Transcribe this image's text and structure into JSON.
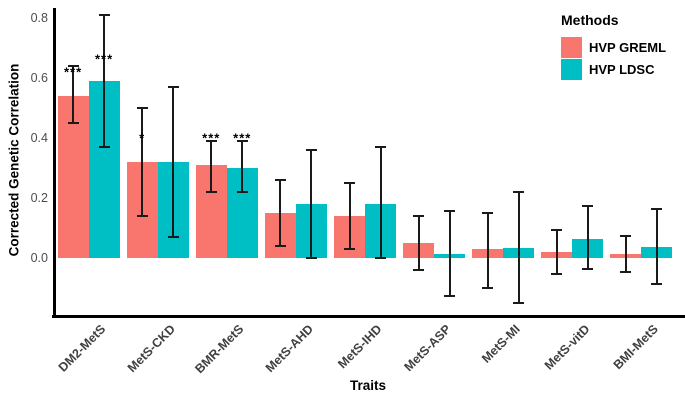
{
  "chart_data": {
    "type": "bar",
    "title": "",
    "xlabel": "Traits",
    "ylabel": "Corrected Genetic Correlation",
    "legend_title": "Methods",
    "legend_position": "top-right",
    "grid": false,
    "ylim": [
      -0.19,
      0.835
    ],
    "yticks": [
      {
        "v": 0.0,
        "label": "0.0"
      },
      {
        "v": 0.2,
        "label": "0.2"
      },
      {
        "v": 0.4,
        "label": "0.4"
      },
      {
        "v": 0.6,
        "label": "0.6"
      },
      {
        "v": 0.8,
        "label": "0.8"
      }
    ],
    "categories": [
      "DM2-MetS",
      "MetS-CKD",
      "BMR-MetS",
      "MetS-AHD",
      "MetS-IHD",
      "MetS-ASP",
      "MetS-MI",
      "MetS-vitD",
      "BMI-MetS"
    ],
    "series": [
      {
        "name": "HVP GREML",
        "color": "#F8766D",
        "values": [
          0.54,
          0.32,
          0.31,
          0.15,
          0.14,
          0.05,
          0.03,
          0.02,
          0.012
        ],
        "err_low": [
          0.45,
          0.14,
          0.22,
          0.04,
          0.03,
          -0.04,
          -0.1,
          -0.053,
          -0.046
        ],
        "err_high": [
          0.64,
          0.5,
          0.39,
          0.26,
          0.25,
          0.14,
          0.15,
          0.093,
          0.073
        ],
        "sig": [
          "***",
          "*",
          "***",
          "",
          "",
          "",
          "",
          "",
          ""
        ],
        "sig_y": [
          0.62,
          0.4,
          0.4,
          null,
          null,
          null,
          null,
          null,
          null
        ]
      },
      {
        "name": "HVP LDSC",
        "color": "#00BFC4",
        "values": [
          0.59,
          0.32,
          0.3,
          0.18,
          0.18,
          0.012,
          0.035,
          0.065,
          0.038
        ],
        "err_low": [
          0.37,
          0.07,
          0.22,
          0.0,
          0.0,
          -0.125,
          -0.15,
          -0.037,
          -0.085
        ],
        "err_high": [
          0.81,
          0.57,
          0.39,
          0.36,
          0.37,
          0.157,
          0.22,
          0.174,
          0.163
        ],
        "sig": [
          "***",
          "",
          "***",
          "",
          "",
          "",
          "",
          "",
          ""
        ],
        "sig_y": [
          0.662,
          null,
          0.4,
          null,
          null,
          null,
          null,
          null,
          null
        ]
      }
    ]
  }
}
